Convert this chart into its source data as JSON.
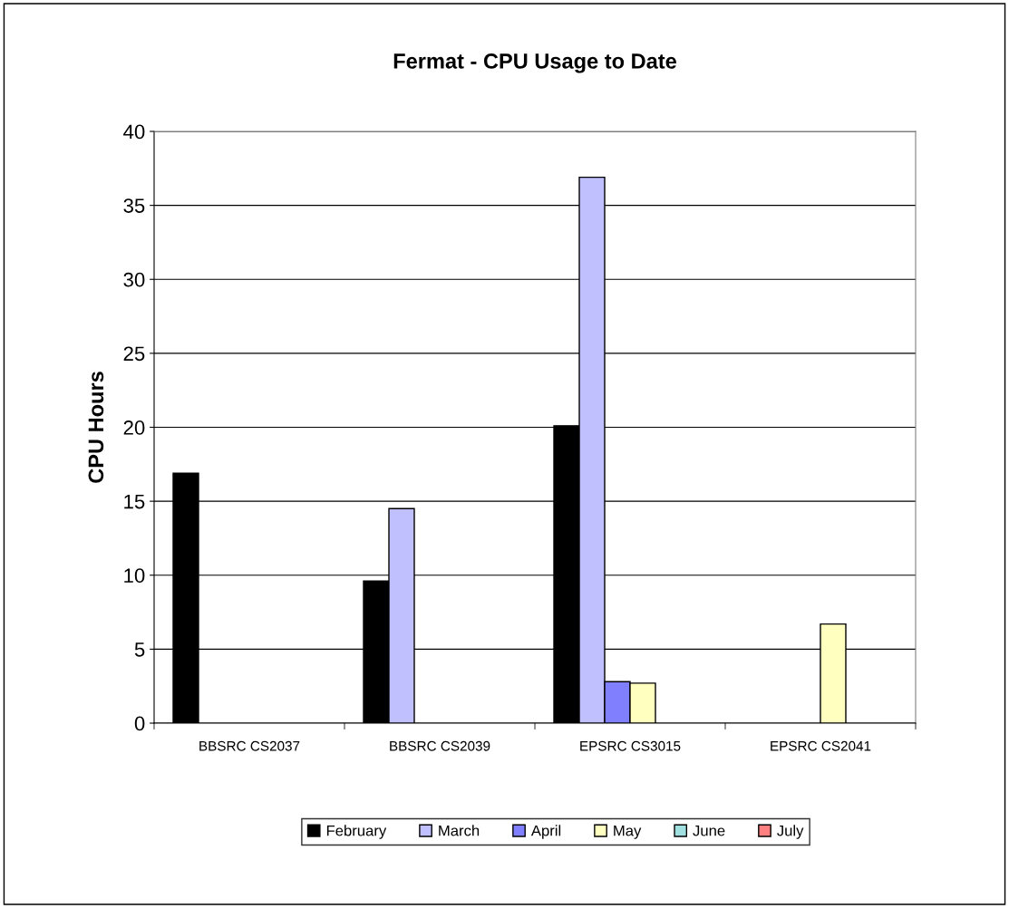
{
  "chart_data": {
    "type": "bar",
    "title": "Fermat - CPU Usage to Date",
    "ylabel": "CPU Hours",
    "categories": [
      "BBSRC CS2037",
      "BBSRC CS2039",
      "EPSRC CS3015",
      "EPSRC CS2041"
    ],
    "series": [
      {
        "name": "February",
        "color": "#000000",
        "values": [
          16.9,
          9.6,
          20.1,
          null
        ]
      },
      {
        "name": "March",
        "color": "#c0c0ff",
        "values": [
          null,
          14.5,
          36.9,
          null
        ]
      },
      {
        "name": "April",
        "color": "#8080ff",
        "values": [
          null,
          null,
          2.8,
          null
        ]
      },
      {
        "name": "May",
        "color": "#ffffc0",
        "values": [
          null,
          null,
          2.7,
          6.7
        ]
      },
      {
        "name": "June",
        "color": "#a0e0e0",
        "values": [
          null,
          null,
          null,
          null
        ]
      },
      {
        "name": "July",
        "color": "#ff8080",
        "values": [
          null,
          null,
          null,
          null
        ]
      }
    ],
    "ylim": [
      0,
      40
    ],
    "yticks": [
      0,
      5,
      10,
      15,
      20,
      25,
      30,
      35,
      40
    ],
    "grid": "y",
    "legend": "bottom"
  }
}
